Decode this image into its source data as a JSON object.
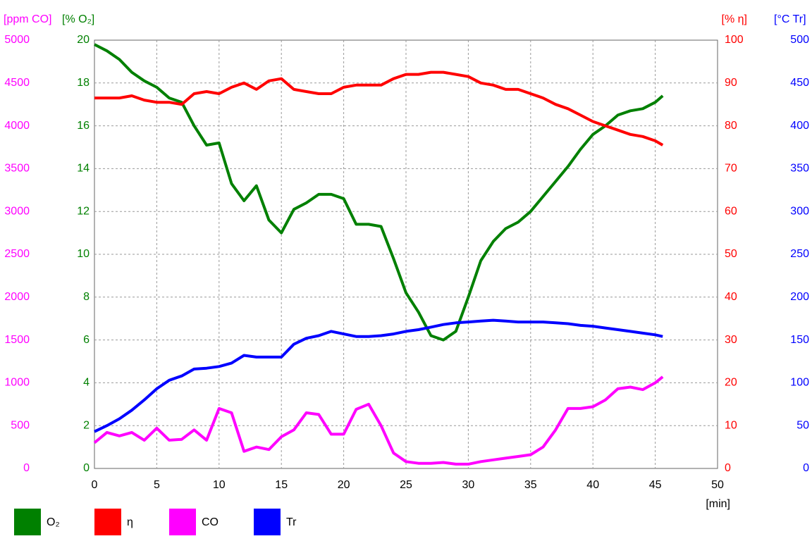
{
  "chart_data": {
    "type": "line",
    "x_label": "[min]",
    "xlim": [
      0,
      50
    ],
    "xticks": [
      0,
      5,
      10,
      15,
      20,
      25,
      30,
      35,
      40,
      45,
      50
    ],
    "grid": true,
    "axes": [
      {
        "label": "[ppm CO]",
        "color": "#ff00ff",
        "lim": [
          0,
          5000
        ],
        "ticks": [
          0,
          500,
          1000,
          1500,
          2000,
          2500,
          3000,
          3500,
          4000,
          4500,
          5000
        ]
      },
      {
        "label": "[% O₂]",
        "color": "#008000",
        "lim": [
          0,
          20
        ],
        "ticks": [
          0,
          2,
          4,
          6,
          8,
          10,
          12,
          14,
          16,
          18,
          20
        ]
      },
      {
        "label": "[% η]",
        "color": "#ff0000",
        "lim": [
          0,
          100
        ],
        "ticks": [
          0,
          10,
          20,
          30,
          40,
          50,
          60,
          70,
          80,
          90,
          100
        ]
      },
      {
        "label": "[°C Tr]",
        "color": "#0000ff",
        "lim": [
          0,
          500
        ],
        "ticks": [
          0,
          50,
          100,
          150,
          200,
          250,
          300,
          350,
          400,
          450,
          500
        ]
      }
    ],
    "x": [
      0,
      1,
      2,
      3,
      4,
      5,
      6,
      7,
      8,
      9,
      10,
      11,
      12,
      13,
      14,
      15,
      16,
      17,
      18,
      19,
      20,
      21,
      22,
      23,
      24,
      25,
      26,
      27,
      28,
      29,
      30,
      31,
      32,
      33,
      34,
      35,
      36,
      37,
      38,
      39,
      40,
      41,
      42,
      43,
      44,
      45,
      45.6
    ],
    "series": [
      {
        "name": "O₂",
        "color": "#008000",
        "axis": 1,
        "values": [
          19.8,
          19.5,
          19.1,
          18.5,
          18.1,
          17.8,
          17.3,
          17.1,
          16.0,
          15.1,
          15.2,
          13.3,
          12.5,
          13.2,
          11.6,
          11.0,
          12.1,
          12.4,
          12.8,
          12.8,
          12.6,
          11.4,
          11.4,
          11.3,
          9.8,
          8.2,
          7.3,
          6.2,
          6.0,
          6.4,
          8.0,
          9.7,
          10.6,
          11.2,
          11.5,
          12.0,
          12.7,
          13.4,
          14.1,
          14.9,
          15.6,
          16.0,
          16.5,
          16.7,
          16.8,
          17.1,
          17.4
        ]
      },
      {
        "name": "η",
        "color": "#ff0000",
        "axis": 2,
        "values": [
          86.5,
          86.5,
          86.5,
          87,
          86,
          85.5,
          85.5,
          85,
          87.5,
          88,
          87.5,
          89,
          90,
          88.5,
          90.5,
          91,
          88.5,
          88,
          87.5,
          87.5,
          89,
          89.5,
          89.5,
          89.5,
          91,
          92,
          92,
          92.5,
          92.5,
          92,
          91.5,
          90,
          89.5,
          88.5,
          88.5,
          87.5,
          86.5,
          85,
          84,
          82.5,
          81,
          80,
          79,
          78,
          77.5,
          76.5,
          75.5
        ]
      },
      {
        "name": "CO",
        "color": "#ff00ff",
        "axis": 0,
        "values": [
          300,
          420,
          380,
          420,
          330,
          470,
          330,
          340,
          450,
          330,
          700,
          650,
          200,
          250,
          220,
          370,
          450,
          650,
          630,
          400,
          400,
          690,
          750,
          500,
          180,
          80,
          60,
          60,
          70,
          50,
          50,
          80,
          100,
          120,
          140,
          160,
          250,
          450,
          700,
          700,
          720,
          800,
          930,
          950,
          920,
          1000,
          1070
        ]
      },
      {
        "name": "Tr",
        "color": "#0000ff",
        "axis": 3,
        "values": [
          43,
          50,
          58,
          68,
          80,
          93,
          103,
          108,
          116,
          117,
          119,
          123,
          132,
          130,
          130,
          130,
          145,
          152,
          155,
          160,
          157,
          154,
          154,
          155,
          157,
          160,
          162,
          165,
          168,
          170,
          171,
          172,
          173,
          172,
          171,
          171,
          171,
          170,
          169,
          167,
          166,
          164,
          162,
          160,
          158,
          156,
          154
        ]
      }
    ]
  }
}
